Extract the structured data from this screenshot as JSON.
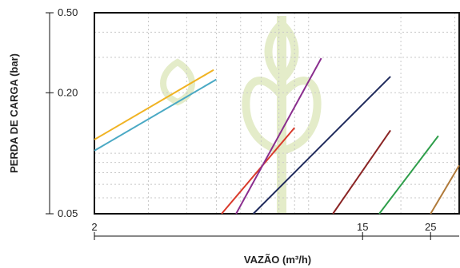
{
  "chart_data": {
    "type": "line",
    "xlabel": "VAZÃO (m³/h)",
    "ylabel": "PERDA DE CARGA (bar)",
    "x_scale": "log",
    "y_scale": "log",
    "xlim": [
      2,
      31
    ],
    "ylim": [
      0.05,
      0.5
    ],
    "x_ticks": [
      2,
      15,
      25
    ],
    "x_tick_labels": [
      "2",
      "15",
      "25"
    ],
    "y_ticks": [
      0.05,
      0.2,
      0.5
    ],
    "y_tick_labels": [
      "0.05",
      "0.20",
      "0.50"
    ],
    "grid": true,
    "legend": "none",
    "series": [
      {
        "color": "#f0b323",
        "x": [
          2.0,
          4.9
        ],
        "y": [
          0.117,
          0.26
        ]
      },
      {
        "color": "#4aa9c4",
        "x": [
          2.0,
          5.0
        ],
        "y": [
          0.103,
          0.233
        ]
      },
      {
        "color": "#d93a2b",
        "x": [
          5.2,
          9.0
        ],
        "y": [
          0.05,
          0.134
        ]
      },
      {
        "color": "#8a2e8e",
        "x": [
          5.8,
          11.0
        ],
        "y": [
          0.05,
          0.297
        ]
      },
      {
        "color": "#1f2a5c",
        "x": [
          6.6,
          18.5
        ],
        "y": [
          0.05,
          0.241
        ]
      },
      {
        "color": "#8a2424",
        "x": [
          12.0,
          18.5
        ],
        "y": [
          0.05,
          0.13
        ]
      },
      {
        "color": "#2e9e4a",
        "x": [
          17.0,
          26.5
        ],
        "y": [
          0.05,
          0.122
        ]
      },
      {
        "color": "#b07a3a",
        "x": [
          25.0,
          31.0
        ],
        "y": [
          0.05,
          0.087
        ]
      }
    ]
  },
  "colors": {
    "watermark": "#e4ecc9",
    "axis": "#111111",
    "grid": "#c8c8c8"
  }
}
